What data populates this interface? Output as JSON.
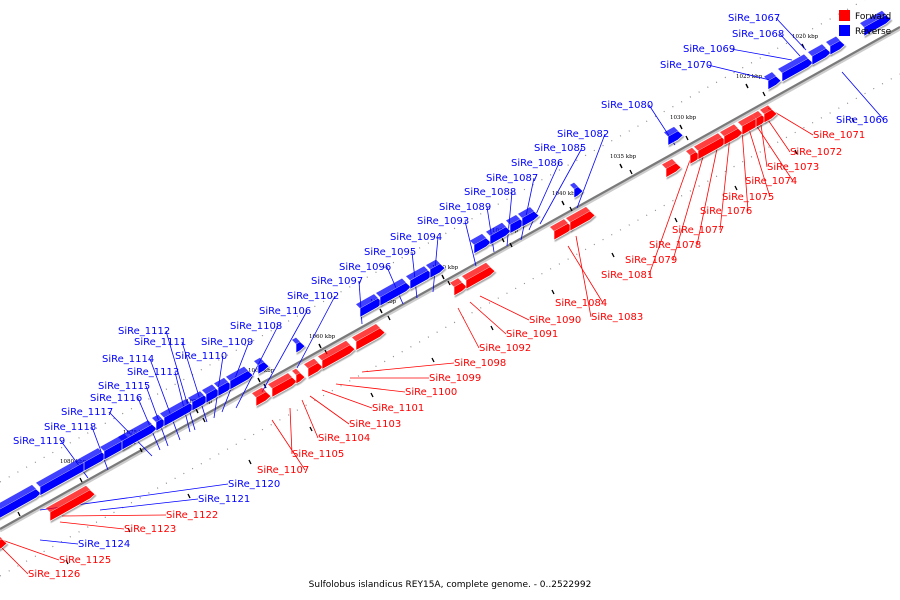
{
  "caption": "Sulfolobus islandicus REY15A, complete genome. - 0..2522992",
  "legend": {
    "forward": {
      "label": "Forward",
      "color": "#ff0000"
    },
    "reverse": {
      "label": "Reverse",
      "color": "#0000ff"
    }
  },
  "colors": {
    "forward": "#ff0000",
    "reverse": "#0000ff",
    "axis": "#808080",
    "dots": "#909090"
  },
  "ticks": [
    "1020 kbp",
    "1025 kbp",
    "1030 kbp",
    "1035 kbp",
    "1040 kbp",
    "1045 kbp",
    "1050 kbp",
    "1055 kbp",
    "1060 kbp",
    "1065 kbp",
    "1070 kbp",
    "1075 kbp",
    "1080 kbp"
  ],
  "reverse_genes": [
    "SiRe_1066",
    "SiRe_1067",
    "SiRe_1068",
    "SiRe_1069",
    "SiRe_1070",
    "SiRe_1080",
    "SiRe_1082",
    "SiRe_1085",
    "SiRe_1086",
    "SiRe_1087",
    "SiRe_1088",
    "SiRe_1089",
    "SiRe_1093",
    "SiRe_1094",
    "SiRe_1095",
    "SiRe_1096",
    "SiRe_1097",
    "SiRe_1102",
    "SiRe_1106",
    "SiRe_1108",
    "SiRe_1109",
    "SiRe_1110",
    "SiRe_1111",
    "SiRe_1112",
    "SiRe_1113",
    "SiRe_1114",
    "SiRe_1115",
    "SiRe_1116",
    "SiRe_1117",
    "SiRe_1118",
    "SiRe_1119",
    "SiRe_1120",
    "SiRe_1121",
    "SiRe_1124"
  ],
  "forward_genes": [
    "SiRe_1071",
    "SiRe_1072",
    "SiRe_1073",
    "SiRe_1074",
    "SiRe_1075",
    "SiRe_1076",
    "SiRe_1077",
    "SiRe_1078",
    "SiRe_1079",
    "SiRe_1081",
    "SiRe_1083",
    "SiRe_1084",
    "SiRe_1090",
    "SiRe_1091",
    "SiRe_1092",
    "SiRe_1098",
    "SiRe_1099",
    "SiRe_1100",
    "SiRe_1101",
    "SiRe_1103",
    "SiRe_1104",
    "SiRe_1105",
    "SiRe_1107",
    "SiRe_1122",
    "SiRe_1123",
    "SiRe_1125",
    "SiRe_1126"
  ]
}
